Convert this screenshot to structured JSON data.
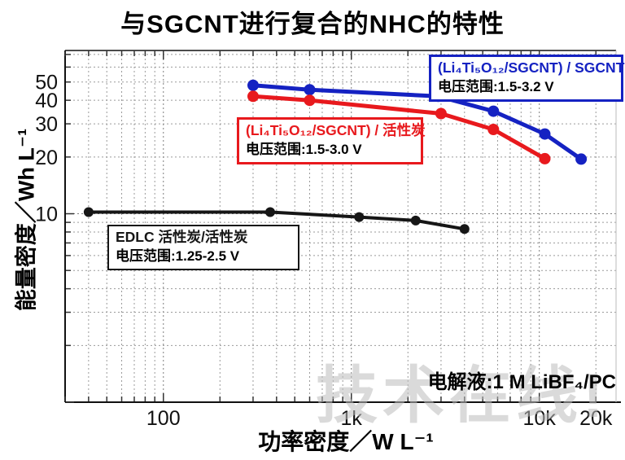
{
  "title": "与SGCNT进行复合的NHC的特性",
  "watermark": "技术在线!",
  "annotation": "电解液:1 M LiBF₄/PC",
  "chart_data": {
    "type": "line",
    "title": "与SGCNT进行复合的NHC的特性",
    "x_axis": {
      "label": "功率密度／W L⁻¹",
      "scale": "log",
      "range": [
        30,
        25600
      ],
      "tick_labels": [
        {
          "value": 100,
          "label": "100"
        },
        {
          "value": 1000,
          "label": "1k"
        },
        {
          "value": 10000,
          "label": "10k"
        },
        {
          "value": 20000,
          "label": "20k"
        }
      ]
    },
    "y_axis": {
      "label": "能量密度／Wh L⁻¹",
      "scale": "log",
      "range": [
        1,
        73.5
      ],
      "tick_labels": [
        {
          "value": 50,
          "label": "50"
        },
        {
          "value": 40,
          "label": "40"
        },
        {
          "value": 30,
          "label": "30"
        },
        {
          "value": 20,
          "label": "20"
        },
        {
          "value": 10,
          "label": "10"
        }
      ]
    },
    "grid": "log minor, dotted gray, both axes",
    "legend_position": "inline boxes on plot",
    "series": [
      {
        "name": "(Li₄Ti₅O₁₂/SGCNT) / SGCNT",
        "color": "#1522c2",
        "line_width": 5,
        "marker_radius": 7,
        "points": [
          [
            300,
            48
          ],
          [
            600,
            45.5
          ],
          [
            2900,
            42
          ],
          [
            5700,
            35
          ],
          [
            10700,
            26.5
          ],
          [
            16700,
            19.5
          ]
        ]
      },
      {
        "name": "(Li₄Ti₅O₁₂/SGCNT) / 活性炭",
        "color": "#e8191d",
        "line_width": 5,
        "marker_radius": 7,
        "points": [
          [
            300,
            42
          ],
          [
            600,
            40
          ],
          [
            3000,
            34
          ],
          [
            5700,
            28
          ],
          [
            10700,
            19.6
          ]
        ]
      },
      {
        "name": "EDLC 活性炭/活性炭",
        "color": "#161616",
        "line_width": 4,
        "marker_radius": 6,
        "points": [
          [
            40,
            10.2
          ],
          [
            370,
            10.2
          ],
          [
            1100,
            9.6
          ],
          [
            2200,
            9.2
          ],
          [
            4000,
            8.3
          ]
        ]
      }
    ],
    "legends": [
      {
        "line1": "(Li₄Ti₅O₁₂/SGCNT) / SGCNT",
        "line2": "电压范围:1.5-3.2 V",
        "color": "#1522c2"
      },
      {
        "line1": "(Li₄Ti₅O₁₂/SGCNT) / 活性炭",
        "line2": "电压范围:1.5-3.0 V",
        "color": "#e8191d"
      },
      {
        "line1": "EDLC 活性炭/活性炭",
        "line2": "电压范围:1.25-2.5 V",
        "color": "#161616"
      }
    ]
  }
}
